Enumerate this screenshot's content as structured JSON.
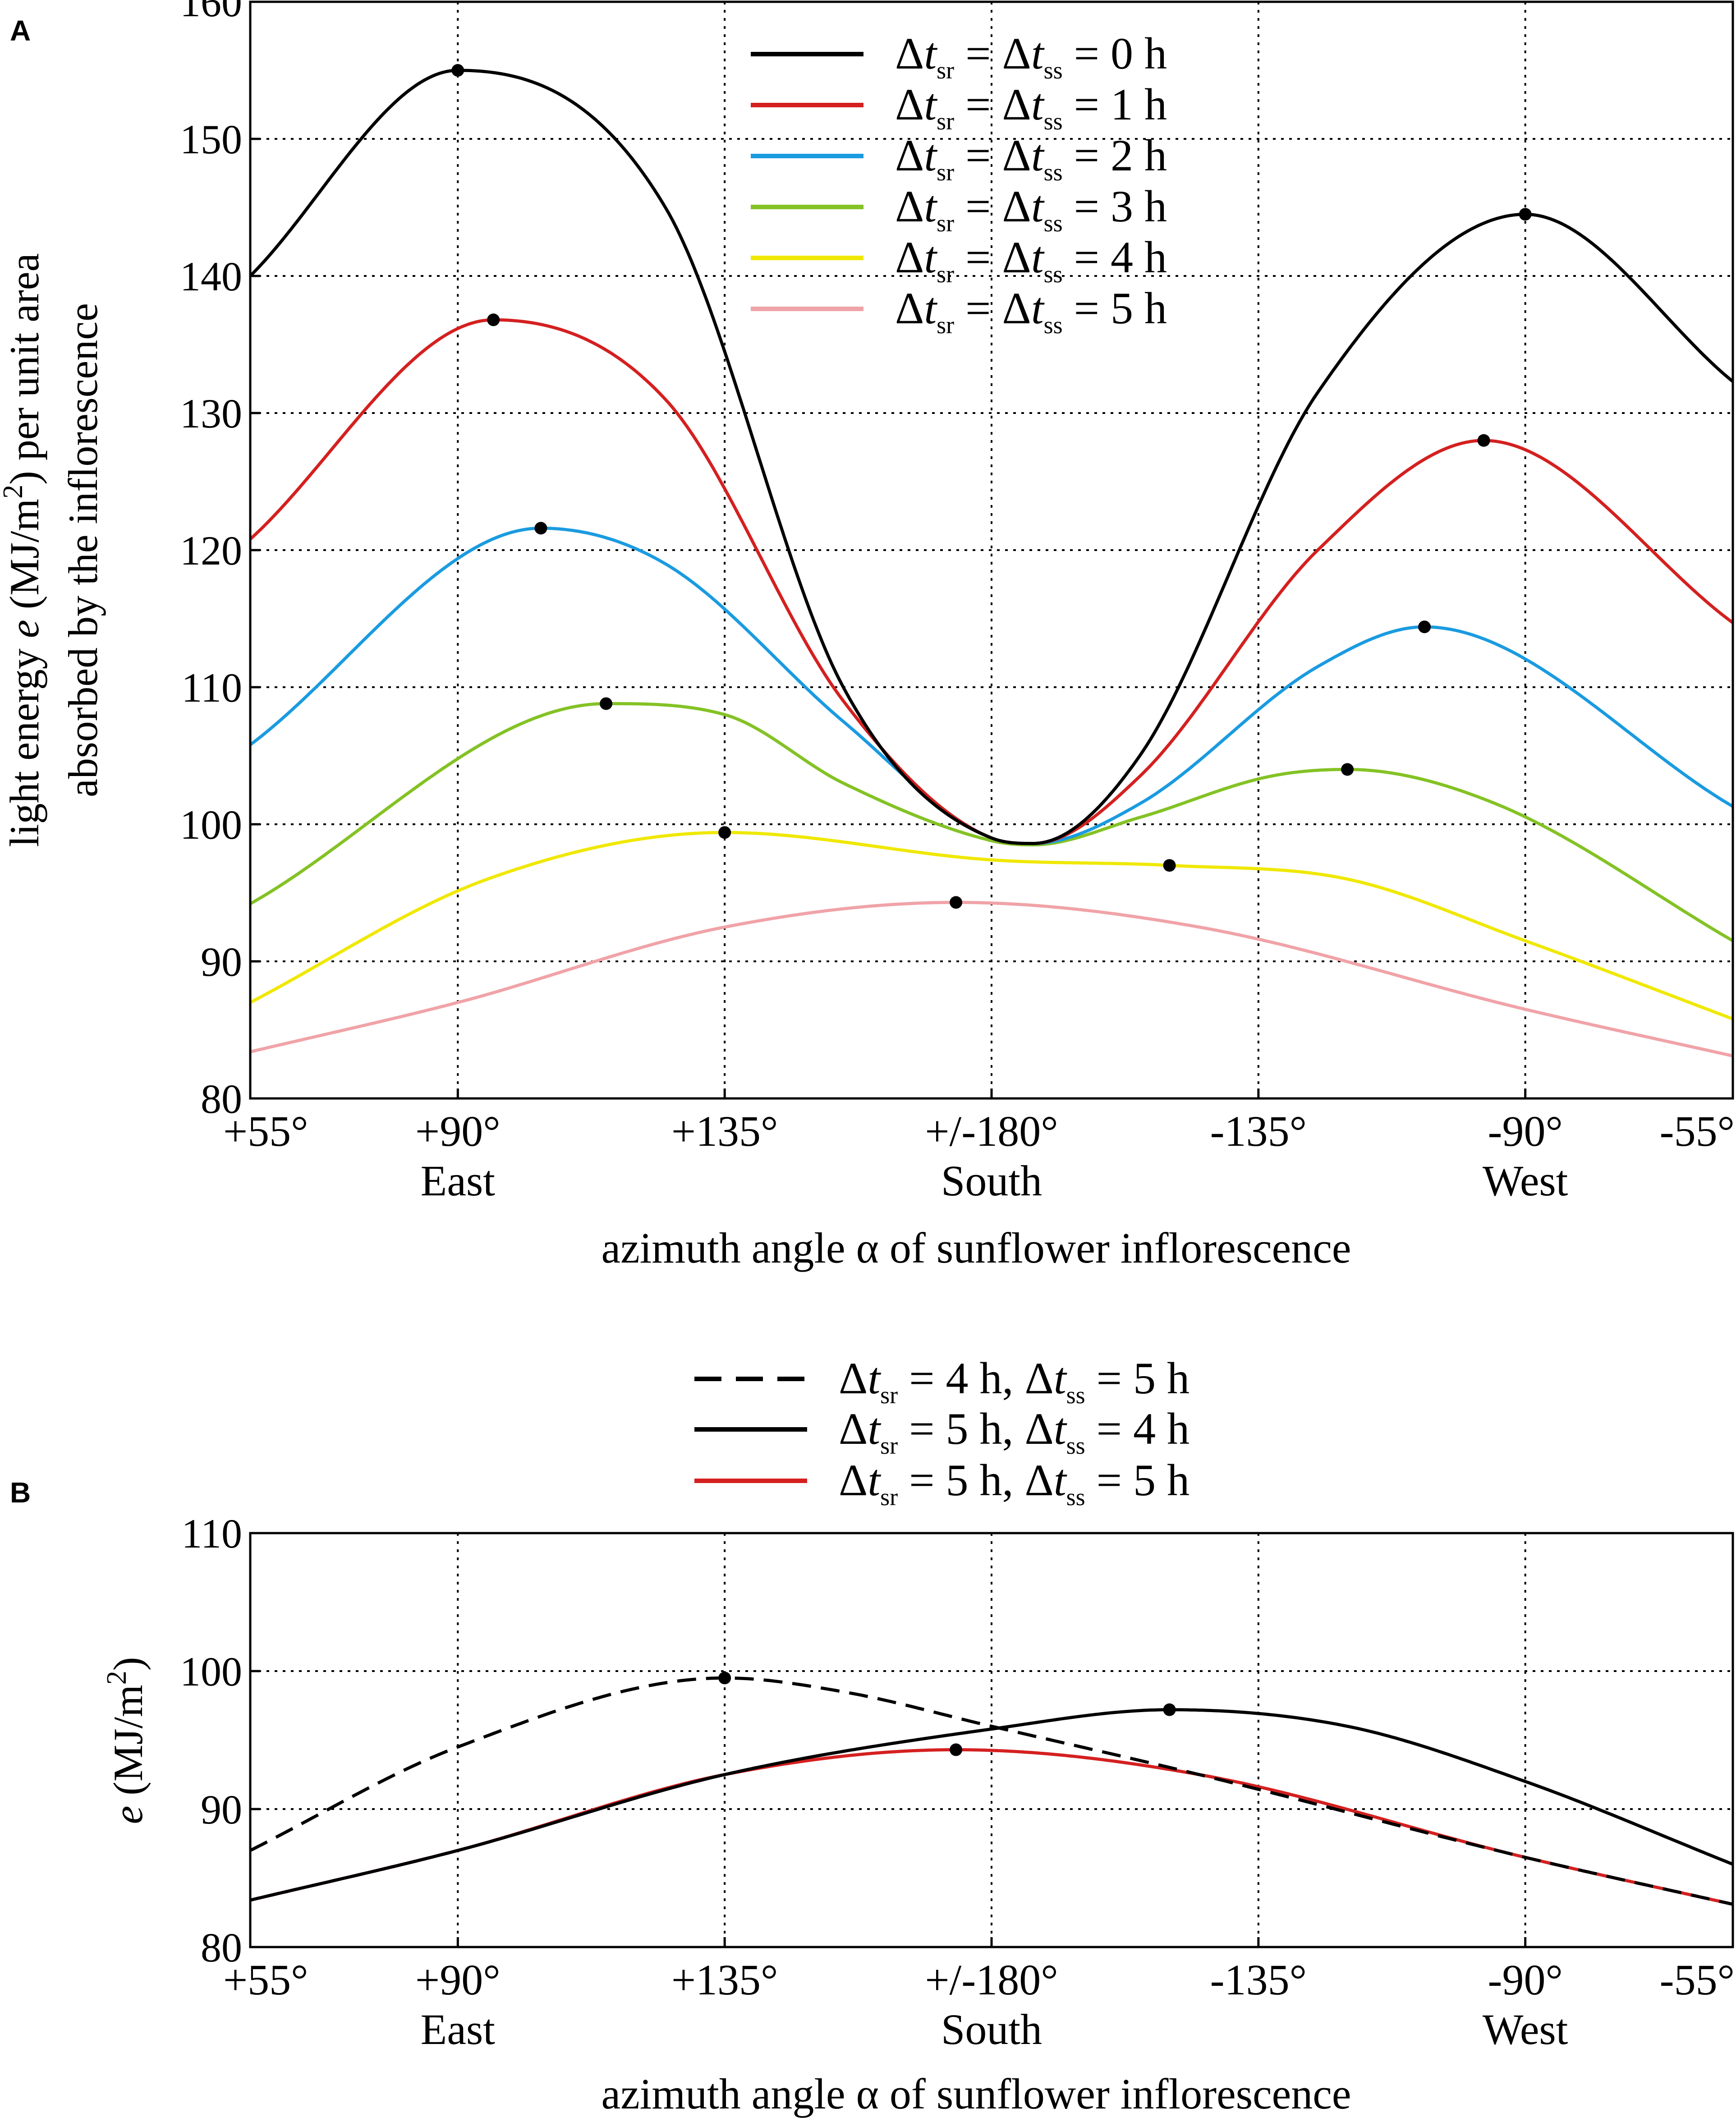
{
  "chart_data": [
    {
      "panel": "A",
      "type": "line",
      "ylabel_line1_part1": "light energy ",
      "ylabel_line1_var": "e",
      "ylabel_line1_part2": " (MJ/m",
      "ylabel_line1_sup": "2",
      "ylabel_line1_part3": ") per unit area",
      "ylabel_line2": "absorbed by the inflorescence",
      "xlabel": "azimuth angle α of sunflower inflorescence",
      "ylim": [
        80,
        160
      ],
      "yticks": [
        "80",
        "90",
        "100",
        "110",
        "120",
        "130",
        "140",
        "150",
        "160"
      ],
      "xticks": [
        {
          "pos": 0,
          "label": "+55°",
          "sub": ""
        },
        {
          "pos": 35,
          "label": "+90°",
          "sub": "East"
        },
        {
          "pos": 80,
          "label": "+135°",
          "sub": ""
        },
        {
          "pos": 125,
          "label": "+/-180°",
          "sub": "South"
        },
        {
          "pos": 170,
          "label": "-135°",
          "sub": ""
        },
        {
          "pos": 215,
          "label": "-90°",
          "sub": "West"
        },
        {
          "pos": 250,
          "label": "-55°",
          "sub": ""
        }
      ],
      "xlim": [
        0,
        250
      ],
      "series": [
        {
          "name": "Δt_sr = Δt_ss = 0 h",
          "legend_value": "0 h",
          "color": "#000000",
          "x": [
            0,
            35,
            70,
            100,
            125,
            132,
            150,
            180,
            215,
            250
          ],
          "y": [
            140.0,
            155.0,
            145.0,
            110.0,
            99.0,
            98.6,
            105.0,
            131.5,
            144.5,
            132.3
          ],
          "marker": {
            "x": 35,
            "y": 155.0
          }
        },
        {
          "name": "Δt_sr = Δt_ss = 1 h",
          "legend_value": "1 h",
          "color": "#d42020",
          "x": [
            0,
            41,
            70,
            100,
            125,
            132,
            150,
            180,
            208,
            250
          ],
          "y": [
            120.8,
            136.8,
            131.0,
            109.0,
            99.0,
            98.6,
            103.5,
            120.0,
            128.0,
            114.7
          ],
          "marker": {
            "x": 41,
            "y": 136.8
          }
        },
        {
          "name": "Δt_sr = Δt_ss = 2 h",
          "legend_value": "2 h",
          "color": "#1a9be0",
          "x": [
            0,
            49,
            70,
            100,
            125,
            132,
            150,
            180,
            198,
            250
          ],
          "y": [
            105.8,
            121.6,
            119.0,
            107.5,
            99.0,
            98.6,
            101.5,
            111.5,
            114.4,
            101.3
          ],
          "marker": {
            "x": 49,
            "y": 121.6
          }
        },
        {
          "name": "Δt_sr = Δt_ss = 3 h",
          "legend_value": "3 h",
          "color": "#84c225",
          "x": [
            0,
            60,
            80,
            100,
            125,
            132,
            150,
            172,
            185,
            210,
            250
          ],
          "y": [
            94.2,
            108.8,
            108.0,
            103.0,
            98.8,
            98.5,
            100.5,
            103.5,
            104.0,
            101.5,
            91.5
          ],
          "marker": {
            "x": 60,
            "y": 108.8
          }
        },
        {
          "name": "Δt_sr = Δt_ss = 4 h",
          "legend_value": "4 h",
          "color": "#f0e800",
          "x": [
            0,
            40,
            80,
            125,
            155,
            185,
            215,
            250
          ],
          "y": [
            87.0,
            96.0,
            99.4,
            97.4,
            97.0,
            96.0,
            91.5,
            85.8
          ],
          "marker": {
            "x": 80,
            "y": 99.4
          }
        },
        {
          "name": "Δt_sr = Δt_ss = 5 h",
          "legend_value": "5 h",
          "color": "#f0a3a8",
          "x": [
            0,
            35,
            80,
            119,
            160,
            215,
            250
          ],
          "y": [
            83.4,
            87.0,
            92.5,
            94.3,
            92.5,
            86.5,
            83.1
          ],
          "marker": {
            "x": 119,
            "y": 94.3
          }
        }
      ],
      "extra_markers": [
        {
          "x": 155,
          "y": 97.0,
          "series": "Δt_sr = Δt_ss = 4 h"
        },
        {
          "x": 185,
          "y": 104.0,
          "series": "Δt_sr = Δt_ss = 3 h"
        },
        {
          "x": 198,
          "y": 114.4,
          "series": "Δt_sr = Δt_ss = 2 h"
        },
        {
          "x": 208,
          "y": 128.0,
          "series": "Δt_sr = Δt_ss = 1 h"
        },
        {
          "x": 215,
          "y": 144.5,
          "series": "Δt_sr = Δt_ss = 0 h"
        }
      ],
      "legend_position": "top-center",
      "grid": true
    },
    {
      "panel": "B",
      "type": "line",
      "ylabel_var": "e",
      "ylabel_part1": " (MJ/m",
      "ylabel_sup": "2",
      "ylabel_part2": ")",
      "xlabel": "azimuth angle α of sunflower inflorescence",
      "ylim": [
        80,
        110
      ],
      "yticks": [
        "80",
        "90",
        "100",
        "110"
      ],
      "xticks": [
        {
          "pos": 0,
          "label": "+55°",
          "sub": ""
        },
        {
          "pos": 35,
          "label": "+90°",
          "sub": "East"
        },
        {
          "pos": 80,
          "label": "+135°",
          "sub": ""
        },
        {
          "pos": 125,
          "label": "+/-180°",
          "sub": "South"
        },
        {
          "pos": 170,
          "label": "-135°",
          "sub": ""
        },
        {
          "pos": 215,
          "label": "-90°",
          "sub": "West"
        },
        {
          "pos": 250,
          "label": "-55°",
          "sub": ""
        }
      ],
      "xlim": [
        0,
        250
      ],
      "series": [
        {
          "name": "Δt_sr = 4 h, Δt_ss = 5 h",
          "sr": "4 h",
          "ss": "5 h",
          "color": "#000000",
          "dash": true,
          "x": [
            0,
            35,
            80,
            100,
            125,
            160,
            215,
            250
          ],
          "y": [
            87.0,
            94.5,
            99.5,
            98.5,
            96.0,
            92.5,
            86.5,
            83.1
          ],
          "marker": {
            "x": 80,
            "y": 99.5
          }
        },
        {
          "name": "Δt_sr = 5 h, Δt_ss = 4 h",
          "sr": "5 h",
          "ss": "4 h",
          "color": "#000000",
          "dash": false,
          "x": [
            0,
            35,
            80,
            125,
            155,
            185,
            215,
            250
          ],
          "y": [
            83.4,
            87.0,
            92.5,
            95.8,
            97.2,
            96.0,
            92.0,
            86.0
          ],
          "marker": {
            "x": 155,
            "y": 97.2
          }
        },
        {
          "name": "Δt_sr = 5 h, Δt_ss = 5 h",
          "sr": "5 h",
          "ss": "5 h",
          "color": "#d42020",
          "dash": false,
          "x": [
            0,
            35,
            80,
            119,
            160,
            215,
            250
          ],
          "y": [
            83.4,
            87.0,
            92.5,
            94.3,
            92.5,
            86.5,
            83.1
          ],
          "marker": {
            "x": 119,
            "y": 94.3
          }
        }
      ],
      "legend_position": "above-plot",
      "grid": true
    }
  ]
}
